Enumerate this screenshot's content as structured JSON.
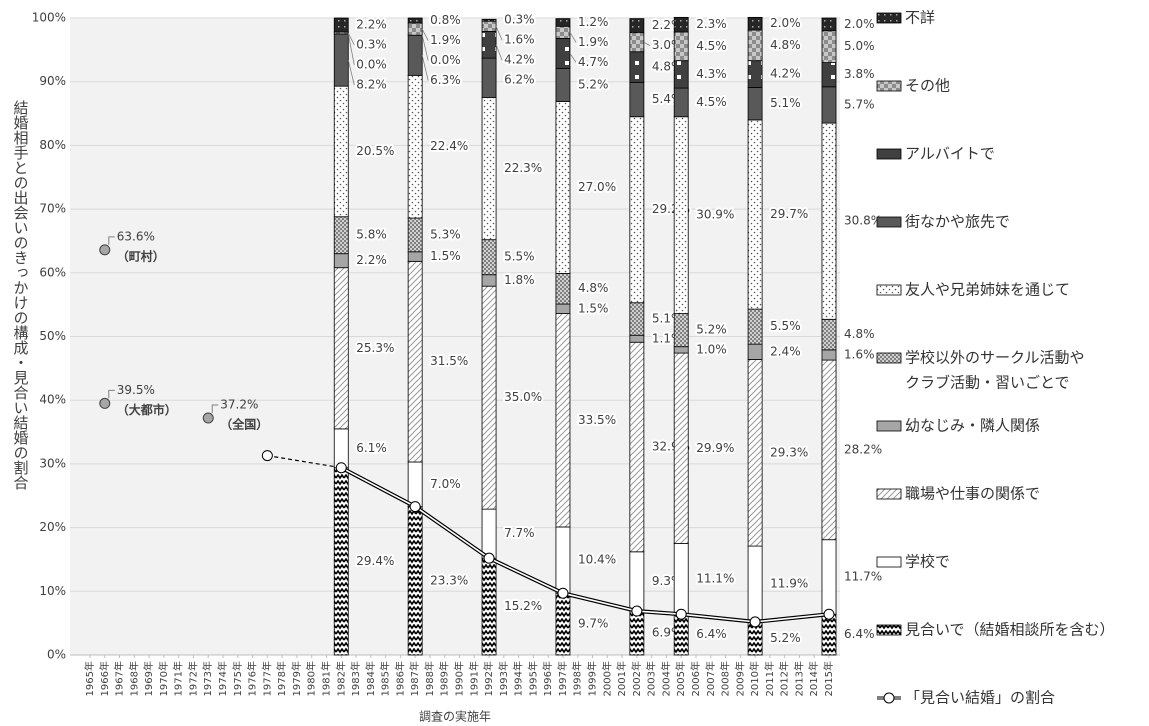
{
  "chart_data": {
    "type": "bar",
    "stacked": true,
    "ylabel": "結婚相手との出会いのきっかけの構成・見合い結婚の割合",
    "xlabel": "調査の実施年",
    "xlim": [
      1964.5,
      2015.5
    ],
    "xticks": [
      {
        "value": 1965,
        "label": "1965年"
      },
      {
        "value": 1966,
        "label": "1966年"
      },
      {
        "value": 1967,
        "label": "1967年"
      },
      {
        "value": 1968,
        "label": "1968年"
      },
      {
        "value": 1969,
        "label": "1969年"
      },
      {
        "value": 1970,
        "label": "1970年"
      },
      {
        "value": 1971,
        "label": "1971年"
      },
      {
        "value": 1972,
        "label": "1972年"
      },
      {
        "value": 1973,
        "label": "1973年"
      },
      {
        "value": 1974,
        "label": "1974年"
      },
      {
        "value": 1975,
        "label": "1975年"
      },
      {
        "value": 1976,
        "label": "1976年"
      },
      {
        "value": 1977,
        "label": "1977年"
      },
      {
        "value": 1978,
        "label": "1978年"
      },
      {
        "value": 1979,
        "label": "1979年"
      },
      {
        "value": 1980,
        "label": "1980年"
      },
      {
        "value": 1981,
        "label": "1981年"
      },
      {
        "value": 1982,
        "label": "1982年"
      },
      {
        "value": 1983,
        "label": "1983年"
      },
      {
        "value": 1984,
        "label": "1984年"
      },
      {
        "value": 1985,
        "label": "1985年"
      },
      {
        "value": 1986,
        "label": "1986年"
      },
      {
        "value": 1987,
        "label": "1987年"
      },
      {
        "value": 1988,
        "label": "1988年"
      },
      {
        "value": 1989,
        "label": "1989年"
      },
      {
        "value": 1990,
        "label": "1990年"
      },
      {
        "value": 1991,
        "label": "1991年"
      },
      {
        "value": 1992,
        "label": "1992年"
      },
      {
        "value": 1993,
        "label": "1993年"
      },
      {
        "value": 1994,
        "label": "1994年"
      },
      {
        "value": 1995,
        "label": "1995年"
      },
      {
        "value": 1996,
        "label": "1996年"
      },
      {
        "value": 1997,
        "label": "1997年"
      },
      {
        "value": 1998,
        "label": "1998年"
      },
      {
        "value": 1999,
        "label": "1999年"
      },
      {
        "value": 2000,
        "label": "2000年"
      },
      {
        "value": 2001,
        "label": "2001年"
      },
      {
        "value": 2002,
        "label": "2002年"
      },
      {
        "value": 2003,
        "label": "2003年"
      },
      {
        "value": 2004,
        "label": "2004年"
      },
      {
        "value": 2005,
        "label": "2005年"
      },
      {
        "value": 2006,
        "label": "2006年"
      },
      {
        "value": 2007,
        "label": "2007年"
      },
      {
        "value": 2008,
        "label": "2008年"
      },
      {
        "value": 2009,
        "label": "2009年"
      },
      {
        "value": 2010,
        "label": "2010年"
      },
      {
        "value": 2011,
        "label": "2011年"
      },
      {
        "value": 2012,
        "label": "2012年"
      },
      {
        "value": 2013,
        "label": "2013年"
      },
      {
        "value": 2014,
        "label": "2014年"
      },
      {
        "value": 2015,
        "label": "2015年"
      }
    ],
    "ylim": [
      0,
      100
    ],
    "yticks": [
      {
        "value": 0,
        "label": "0%"
      },
      {
        "value": 10,
        "label": "10%"
      },
      {
        "value": 20,
        "label": "20%"
      },
      {
        "value": 30,
        "label": "30%"
      },
      {
        "value": 40,
        "label": "40%"
      },
      {
        "value": 50,
        "label": "50%"
      },
      {
        "value": 60,
        "label": "60%"
      },
      {
        "value": 70,
        "label": "70%"
      },
      {
        "value": 80,
        "label": "80%"
      },
      {
        "value": 90,
        "label": "90%"
      },
      {
        "value": 100,
        "label": "100%"
      }
    ],
    "grid": true,
    "legend": "right",
    "bar_x": [
      1982,
      1987,
      1992,
      1997,
      2002,
      2005,
      2010,
      2015
    ],
    "series": [
      {
        "name": [
          "見合いで（結婚相談所を含む）"
        ],
        "pattern": "p-zigzag",
        "color": "#000000",
        "values": [
          29.4,
          23.3,
          15.2,
          9.7,
          6.9,
          6.4,
          5.2,
          6.4
        ],
        "value_labels": [
          "29.4%",
          "23.3%",
          "15.2%",
          "9.7%",
          "6.9%",
          "6.4%",
          "5.2%",
          "6.4%"
        ]
      },
      {
        "name": [
          "学校で"
        ],
        "color": "#ffffff",
        "values": [
          6.1,
          7.0,
          7.7,
          10.4,
          9.3,
          11.1,
          11.9,
          11.7
        ],
        "value_labels": [
          "6.1%",
          "7.0%",
          "7.7%",
          "10.4%",
          "9.3%",
          "11.1%",
          "11.9%",
          "11.7%"
        ]
      },
      {
        "name": [
          "職場や仕事の関係で"
        ],
        "pattern": "p-hatch",
        "color": "#bfbfbf",
        "values": [
          25.3,
          31.5,
          35.0,
          33.5,
          32.9,
          29.9,
          29.3,
          28.2
        ],
        "value_labels": [
          "25.3%",
          "31.5%",
          "35.0%",
          "33.5%",
          "32.9%",
          "29.9%",
          "29.3%",
          "28.2%"
        ]
      },
      {
        "name": [
          "幼なじみ・隣人関係"
        ],
        "color": "#a6a6a6",
        "values": [
          2.2,
          1.5,
          1.8,
          1.5,
          1.1,
          1.0,
          2.4,
          1.6
        ],
        "value_labels": [
          "2.2%",
          "1.5%",
          "1.8%",
          "1.5%",
          "1.1%",
          "1.0%",
          "2.4%",
          "1.6%"
        ]
      },
      {
        "name": [
          "学校以外のサークル活動や",
          "クラブ活動・習いごとで"
        ],
        "pattern": "p-cross",
        "color": "#a6a6a6",
        "values": [
          5.8,
          5.3,
          5.5,
          4.8,
          5.1,
          5.2,
          5.5,
          4.8
        ],
        "value_labels": [
          "5.8%",
          "5.3%",
          "5.5%",
          "4.8%",
          "5.1%",
          "5.2%",
          "5.5%",
          "4.8%"
        ]
      },
      {
        "name": [
          "友人や兄弟姉妹を通じて"
        ],
        "pattern": "p-dots",
        "color": "#808080",
        "values": [
          20.5,
          22.4,
          22.3,
          27.0,
          29.2,
          30.9,
          29.7,
          30.8
        ],
        "value_labels": [
          "20.5%",
          "22.4%",
          "22.3%",
          "27.0%",
          "29.2%",
          "30.9%",
          "29.7%",
          "30.8%"
        ]
      },
      {
        "name": [
          "街なかや旅先で"
        ],
        "color": "#595959",
        "values": [
          8.2,
          6.3,
          6.2,
          5.2,
          5.4,
          4.5,
          5.1,
          5.7
        ],
        "value_labels": [
          "8.2%",
          "6.3%",
          "6.2%",
          "5.2%",
          "5.4%",
          "4.5%",
          "5.1%",
          "5.7%"
        ]
      },
      {
        "name": [
          "アルバイトで"
        ],
        "pattern": "p-sq",
        "color": "#404040",
        "values": [
          0.0,
          0.0,
          4.2,
          4.7,
          4.8,
          4.3,
          4.2,
          3.8
        ],
        "value_labels": [
          "0.0%",
          "0.0%",
          "4.2%",
          "4.7%",
          "4.8%",
          "4.3%",
          "4.2%",
          "3.8%"
        ]
      },
      {
        "name": [
          "その他"
        ],
        "pattern": "p-check",
        "color": "#a6a6a6",
        "values": [
          0.3,
          1.9,
          1.6,
          1.9,
          3.0,
          4.5,
          4.8,
          5.0
        ],
        "value_labels": [
          "0.3%",
          "1.9%",
          "1.6%",
          "1.9%",
          "3.0%",
          "4.5%",
          "4.8%",
          "5.0%"
        ]
      },
      {
        "name": [
          "不詳"
        ],
        "pattern": "p-blackdot",
        "color": "#262626",
        "values": [
          2.2,
          0.8,
          0.3,
          1.2,
          2.2,
          2.3,
          2.0,
          2.0
        ],
        "value_labels": [
          "2.2%",
          "0.8%",
          "0.3%",
          "1.2%",
          "2.2%",
          "2.3%",
          "2.0%",
          "2.0%"
        ]
      }
    ],
    "line": {
      "name": "「見合い結婚」の割合",
      "color": "#000000",
      "dashed_segments": [
        0
      ],
      "x": [
        1977,
        1982,
        1987,
        1992,
        1997,
        2002,
        2005,
        2010,
        2015
      ],
      "values": [
        31.3,
        29.4,
        23.3,
        15.2,
        9.7,
        6.9,
        6.4,
        5.2,
        6.4
      ]
    },
    "points": [
      {
        "x": 1966,
        "value": 63.6,
        "value_label": "63.6%",
        "label": "（町村）"
      },
      {
        "x": 1966,
        "value": 39.5,
        "value_label": "39.5%",
        "label": "（大都市）"
      },
      {
        "x": 1973,
        "value": 37.2,
        "value_label": "37.2%",
        "label": "（全国）"
      }
    ]
  }
}
